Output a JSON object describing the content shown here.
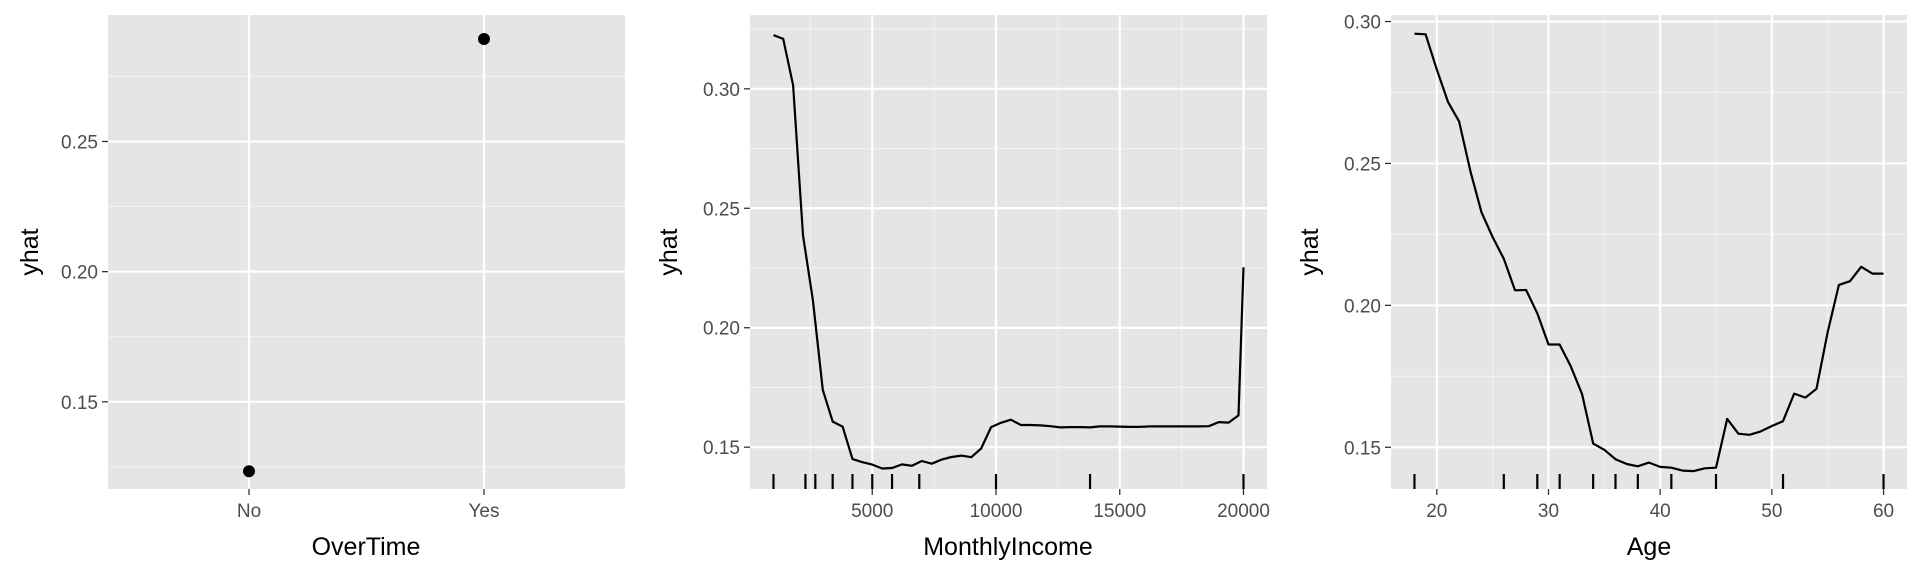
{
  "chart_data": [
    {
      "type": "scatter",
      "x_type": "categorical",
      "categories": [
        "No",
        "Yes"
      ],
      "values": [
        0.1233,
        0.2894
      ],
      "xlabel": "OverTime",
      "ylabel": "yhat",
      "ylim": [
        0.1165,
        0.2986
      ],
      "xticks": [
        "No",
        "Yes"
      ],
      "yticks": [
        0.15,
        0.2,
        0.25
      ],
      "ytick_labels": [
        "0.15",
        "0.20",
        "0.25"
      ],
      "grid": true,
      "rug": []
    },
    {
      "type": "line",
      "x_type": "numeric",
      "x": [
        1009,
        1400,
        1800,
        2200,
        2600,
        3000,
        3400,
        3800,
        4200,
        4600,
        5000,
        5400,
        5800,
        6200,
        6600,
        7000,
        7400,
        7800,
        8200,
        8600,
        9000,
        9400,
        9800,
        10200,
        10600,
        11000,
        11400,
        11800,
        12200,
        12600,
        13000,
        13400,
        13800,
        14200,
        14600,
        15000,
        15400,
        15800,
        16200,
        16600,
        17000,
        17400,
        17800,
        18200,
        18600,
        19000,
        19400,
        19800,
        19999
      ],
      "y": [
        0.3225,
        0.3209,
        0.3015,
        0.2387,
        0.2115,
        0.174,
        0.1607,
        0.1586,
        0.145,
        0.1437,
        0.1427,
        0.1411,
        0.1413,
        0.1428,
        0.1422,
        0.1442,
        0.1431,
        0.1448,
        0.1459,
        0.1465,
        0.1458,
        0.1495,
        0.1584,
        0.1602,
        0.1615,
        0.1593,
        0.1593,
        0.1591,
        0.1588,
        0.1583,
        0.1584,
        0.1584,
        0.1583,
        0.1587,
        0.1587,
        0.1586,
        0.1585,
        0.1585,
        0.1587,
        0.1587,
        0.1587,
        0.1587,
        0.1587,
        0.1587,
        0.1588,
        0.1605,
        0.1603,
        0.1633,
        0.2253
      ],
      "xlabel": "MonthlyIncome",
      "ylabel": "yhat",
      "xlim": [
        60,
        20950
      ],
      "ylim": [
        0.1325,
        0.3309
      ],
      "xticks": [
        5000,
        10000,
        15000,
        20000
      ],
      "xtick_labels": [
        "5000",
        "10000",
        "15000",
        "20000"
      ],
      "yticks": [
        0.15,
        0.2,
        0.25,
        0.3
      ],
      "ytick_labels": [
        "0.15",
        "0.20",
        "0.25",
        "0.30"
      ],
      "grid": true,
      "rug": [
        1009,
        2300,
        2700,
        3400,
        4200,
        5000,
        5800,
        6900,
        10000,
        13800,
        20000
      ]
    },
    {
      "type": "line",
      "x_type": "numeric",
      "x": [
        18,
        19,
        20,
        21,
        22,
        23,
        24,
        25,
        26,
        27,
        28,
        29,
        30,
        31,
        32,
        33,
        34,
        35,
        36,
        37,
        38,
        39,
        40,
        41,
        42,
        43,
        44,
        45,
        46,
        47,
        48,
        49,
        50,
        51,
        52,
        53,
        54,
        55,
        56,
        57,
        58,
        59,
        60
      ],
      "y": [
        0.2957,
        0.2955,
        0.2831,
        0.2717,
        0.2648,
        0.2474,
        0.2328,
        0.2241,
        0.2164,
        0.2053,
        0.2054,
        0.1972,
        0.1862,
        0.1862,
        0.1785,
        0.1688,
        0.1513,
        0.1491,
        0.1458,
        0.1441,
        0.1433,
        0.1446,
        0.1431,
        0.1428,
        0.1418,
        0.1416,
        0.1426,
        0.1428,
        0.16,
        0.1548,
        0.1544,
        0.1556,
        0.1575,
        0.1592,
        0.1689,
        0.1675,
        0.1706,
        0.1906,
        0.2072,
        0.2085,
        0.2136,
        0.2112,
        0.2112
      ],
      "xlabel": "Age",
      "ylabel": "yhat",
      "xlim": [
        15.9,
        62.1
      ],
      "ylim": [
        0.1353,
        0.3023
      ],
      "xticks": [
        20,
        30,
        40,
        50,
        60
      ],
      "xtick_labels": [
        "20",
        "30",
        "40",
        "50",
        "60"
      ],
      "yticks": [
        0.15,
        0.2,
        0.25,
        0.3
      ],
      "ytick_labels": [
        "0.15",
        "0.20",
        "0.25",
        "0.30"
      ],
      "grid": true,
      "rug": [
        18,
        26,
        29,
        31,
        34,
        36,
        38,
        41,
        45,
        51,
        60
      ]
    }
  ]
}
